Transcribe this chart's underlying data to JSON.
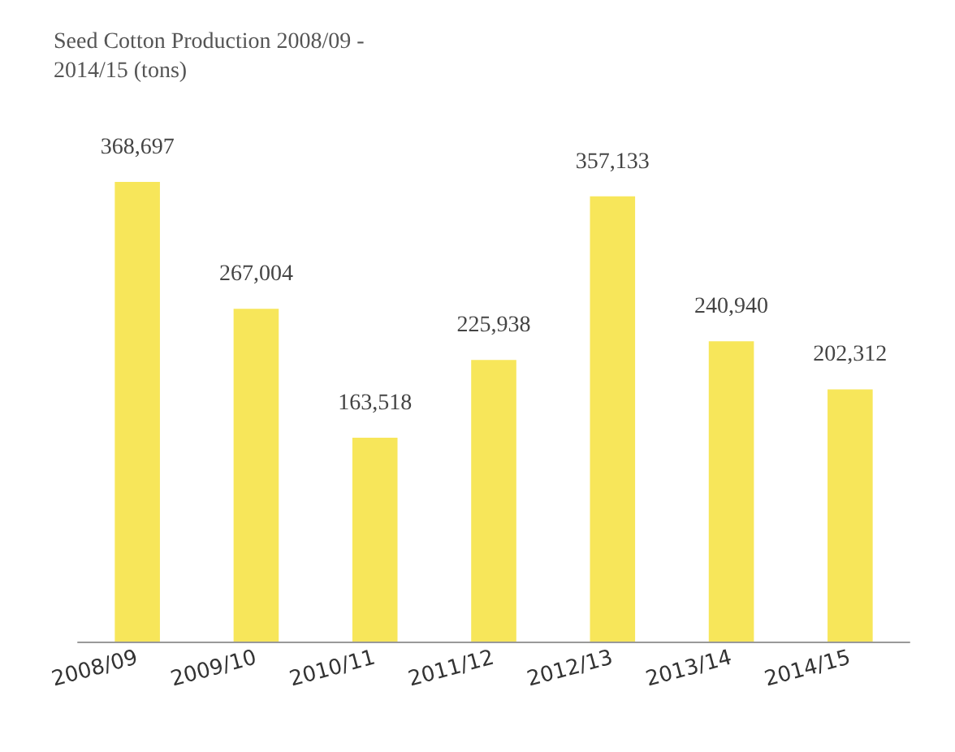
{
  "chart_data": {
    "type": "bar",
    "title": "Seed Cotton Production 2008/09 -\n2014/15 (tons)",
    "categories": [
      "2008/09",
      "2009/10",
      "2010/11",
      "2011/12",
      "2012/13",
      "2013/14",
      "2014/15"
    ],
    "values": [
      368697,
      267004,
      163518,
      225938,
      357133,
      240940,
      202312
    ],
    "value_labels": [
      "368,697",
      "267,004",
      "163,518",
      "225,938",
      "357,133",
      "240,940",
      "202,312"
    ],
    "color": "#f7e65a",
    "tick_labels": "x",
    "grid": false
  }
}
